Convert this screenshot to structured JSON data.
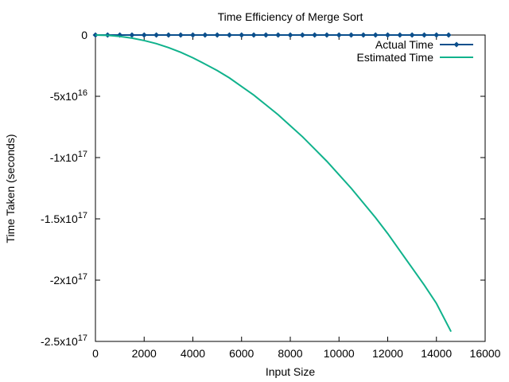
{
  "chart_data": {
    "type": "line",
    "title": "Time Efficiency of Merge Sort",
    "xlabel": "Input Size",
    "ylabel": "Time Taken (seconds)",
    "xlim": [
      0,
      16000
    ],
    "ylim": [
      -2.5e+17,
      0
    ],
    "x_ticks": [
      0,
      2000,
      4000,
      6000,
      8000,
      10000,
      12000,
      14000,
      16000
    ],
    "x_tick_labels": [
      "0",
      "2000",
      "4000",
      "6000",
      "8000",
      "10000",
      "12000",
      "14000",
      "16000"
    ],
    "y_ticks": [
      0,
      -5e+16,
      -1e+17,
      -1.5e+17,
      -2e+17,
      -2.5e+17
    ],
    "y_tick_labels": [
      {
        "mant": "0",
        "exp": ""
      },
      {
        "mant": "-5x10",
        "exp": "16"
      },
      {
        "mant": "-1x10",
        "exp": "17"
      },
      {
        "mant": "-1.5x10",
        "exp": "17"
      },
      {
        "mant": "-2x10",
        "exp": "17"
      },
      {
        "mant": "-2.5x10",
        "exp": "17"
      }
    ],
    "grid": false,
    "legend_position": "top-right",
    "series": [
      {
        "name": "Actual Time",
        "color": "#0b4f8c",
        "style": "linespoints",
        "x": [
          0,
          500,
          1000,
          1500,
          2000,
          2500,
          3000,
          3500,
          4000,
          4500,
          5000,
          5500,
          6000,
          6500,
          7000,
          7500,
          8000,
          8500,
          9000,
          9500,
          10000,
          10500,
          11000,
          11500,
          12000,
          12500,
          13000,
          13500,
          14000,
          14500
        ],
        "y": [
          0,
          0,
          0,
          0,
          0,
          0,
          0,
          0,
          0,
          0,
          0,
          0,
          0,
          0,
          0,
          0,
          0,
          0,
          0,
          0,
          0,
          0,
          0,
          0,
          0,
          0,
          0,
          0,
          0,
          0
        ]
      },
      {
        "name": "Estimated Time",
        "color": "#10b28c",
        "style": "line",
        "x": [
          0,
          500,
          1000,
          1500,
          2000,
          2500,
          3000,
          3500,
          4000,
          4500,
          5000,
          5500,
          6000,
          6500,
          7000,
          7500,
          8000,
          8500,
          9000,
          9500,
          10000,
          10500,
          11000,
          11500,
          12000,
          12500,
          13000,
          13500,
          14000,
          14600
        ],
        "y": [
          0,
          -280000000000000.0,
          -1130000000000000.0,
          -2540000000000000.0,
          -4500000000000000.0,
          -7000000000000000.0,
          -1.03e+16,
          -1.41e+16,
          -1.86e+16,
          -2.37e+16,
          -2.9e+16,
          -3.5e+16,
          -4.2e+16,
          -4.9e+16,
          -5.7e+16,
          -6.5e+16,
          -7.4e+16,
          -8.3e+16,
          -9.3e+16,
          -1.03e+17,
          -1.14e+17,
          -1.25e+17,
          -1.37e+17,
          -1.49e+17,
          -1.62e+17,
          -1.76e+17,
          -1.9e+17,
          -2.04e+17,
          -2.19e+17,
          -2.42e+17
        ]
      }
    ]
  }
}
